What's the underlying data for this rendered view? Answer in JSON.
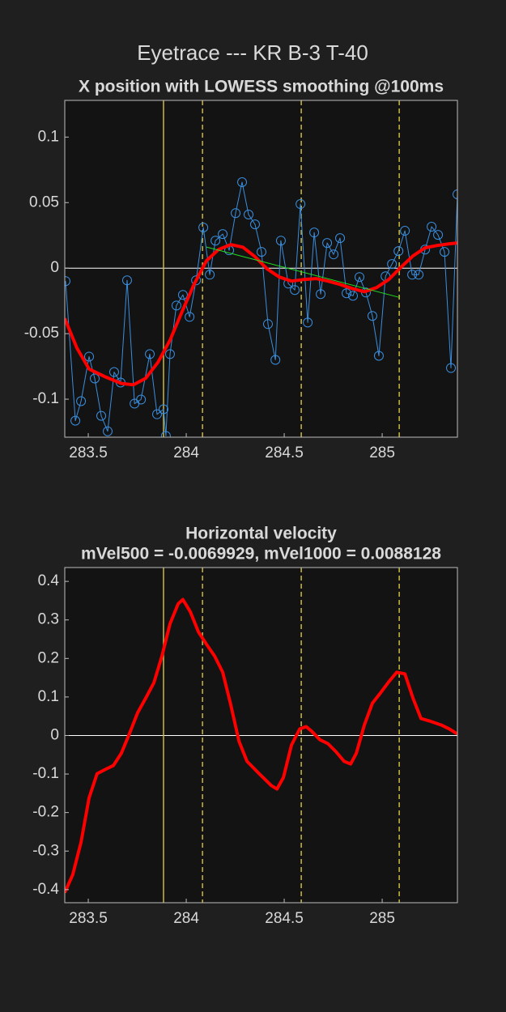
{
  "title": "Eyetrace --- KR B-3 T-40",
  "chart_data": [
    {
      "type": "line",
      "title": "X position with LOWESS smoothing @100ms",
      "xlim": [
        283.38,
        285.384
      ],
      "ylim": [
        -0.129,
        0.128
      ],
      "xticks": [
        283.5,
        284,
        284.5,
        285
      ],
      "yticks": [
        -0.1,
        -0.05,
        0,
        0.05,
        0.1
      ],
      "hlines": [
        0
      ],
      "vlines": [
        {
          "x": 283.884,
          "style": "solid"
        },
        {
          "x": 284.083,
          "style": "dashed"
        },
        {
          "x": 284.587,
          "style": "dashed"
        },
        {
          "x": 285.087,
          "style": "dashed"
        }
      ],
      "vline_color": "#cbb93f",
      "series": [
        {
          "color": "#3a8ede",
          "marker": "circle",
          "width": 1,
          "x": [
            283.384,
            283.434,
            283.463,
            283.504,
            283.533,
            283.566,
            283.599,
            283.632,
            283.665,
            283.698,
            283.736,
            283.769,
            283.814,
            283.851,
            283.884,
            283.896,
            283.917,
            283.95,
            283.983,
            284.017,
            284.05,
            284.087,
            284.12,
            284.149,
            284.186,
            284.219,
            284.252,
            284.285,
            284.318,
            284.351,
            284.384,
            284.417,
            284.455,
            284.483,
            284.521,
            284.554,
            284.583,
            284.62,
            284.653,
            284.686,
            284.719,
            284.752,
            284.785,
            284.818,
            284.851,
            284.884,
            284.917,
            284.95,
            284.983,
            285.017,
            285.05,
            285.083,
            285.116,
            285.153,
            285.186,
            285.219,
            285.252,
            285.285,
            285.318,
            285.351,
            285.384
          ],
          "values": [
            -0.0099,
            -0.1164,
            -0.1015,
            -0.0675,
            -0.0842,
            -0.1127,
            -0.1245,
            -0.0793,
            -0.0873,
            -0.0093,
            -0.1034,
            -0.1003,
            -0.0656,
            -0.1115,
            -0.1077,
            -0.128,
            -0.0656,
            -0.0285,
            -0.0204,
            -0.0372,
            -0.0093,
            0.031,
            -0.005,
            0.021,
            0.026,
            0.0136,
            0.042,
            0.0656,
            0.0409,
            0.0334,
            0.0124,
            -0.0427,
            -0.07,
            0.021,
            -0.0118,
            -0.0167,
            0.0489,
            -0.0415,
            0.0272,
            -0.0198,
            0.0192,
            0.0105,
            0.0229,
            -0.0192,
            -0.0211,
            -0.0068,
            -0.0186,
            -0.0365,
            -0.0669,
            -0.0062,
            0.0031,
            0.013,
            0.0285,
            -0.005,
            -0.005,
            0.0142,
            0.0316,
            0.0254,
            0.0124,
            -0.0762,
            0.0563
          ]
        },
        {
          "color": "#ff0000",
          "width": 4,
          "x": [
            283.38,
            283.442,
            283.504,
            283.587,
            283.669,
            283.731,
            283.793,
            283.855,
            283.917,
            283.979,
            284.041,
            284.103,
            284.165,
            284.227,
            284.289,
            284.351,
            284.413,
            284.475,
            284.537,
            284.599,
            284.661,
            284.723,
            284.785,
            284.847,
            284.909,
            284.971,
            285.033,
            285.095,
            285.157,
            285.219,
            285.281,
            285.343,
            285.384
          ],
          "values": [
            -0.0384,
            -0.061,
            -0.077,
            -0.083,
            -0.088,
            -0.089,
            -0.084,
            -0.072,
            -0.055,
            -0.033,
            -0.012,
            0.0056,
            0.0142,
            0.018,
            0.016,
            0.0087,
            -0.0006,
            -0.0068,
            -0.0099,
            -0.0087,
            -0.008,
            -0.0099,
            -0.0124,
            -0.0155,
            -0.018,
            -0.0149,
            -0.0087,
            0.0006,
            0.0093,
            0.0155,
            0.0173,
            0.0186,
            0.0192
          ]
        },
        {
          "color": "#22dd22",
          "width": 1,
          "x": [
            284.103,
            285.087
          ],
          "values": [
            0.0161,
            -0.0223
          ]
        }
      ]
    },
    {
      "type": "line",
      "title": "Horizontal velocity",
      "subtitle": "mVel500 = -0.0069929, mVel1000 = 0.0088128",
      "xlim": [
        283.38,
        285.384
      ],
      "ylim": [
        -0.434,
        0.436
      ],
      "xticks": [
        283.5,
        284,
        284.5,
        285
      ],
      "yticks": [
        -0.4,
        -0.3,
        -0.2,
        -0.1,
        0,
        0.1,
        0.2,
        0.3,
        0.4
      ],
      "hlines": [
        0
      ],
      "vlines": [
        {
          "x": 283.884,
          "style": "solid"
        },
        {
          "x": 284.083,
          "style": "dashed"
        },
        {
          "x": 284.587,
          "style": "dashed"
        },
        {
          "x": 285.087,
          "style": "dashed"
        }
      ],
      "vline_color": "#cbb93f",
      "series": [
        {
          "color": "#ff0000",
          "width": 4,
          "x": [
            283.38,
            283.421,
            283.463,
            283.504,
            283.545,
            283.587,
            283.628,
            283.669,
            283.711,
            283.752,
            283.793,
            283.835,
            283.876,
            283.917,
            283.959,
            283.983,
            284.021,
            284.062,
            284.103,
            284.145,
            284.186,
            284.227,
            284.269,
            284.31,
            284.372,
            284.434,
            284.463,
            284.496,
            284.537,
            284.579,
            284.612,
            284.64,
            284.682,
            284.723,
            284.764,
            284.806,
            284.839,
            284.868,
            284.909,
            284.95,
            284.992,
            285.033,
            285.074,
            285.116,
            285.157,
            285.198,
            285.24,
            285.302,
            285.343,
            285.384
          ],
          "values": [
            -0.408,
            -0.361,
            -0.277,
            -0.162,
            -0.099,
            -0.088,
            -0.078,
            -0.046,
            0.006,
            0.059,
            0.097,
            0.137,
            0.206,
            0.29,
            0.342,
            0.353,
            0.321,
            0.269,
            0.237,
            0.206,
            0.164,
            0.08,
            -0.015,
            -0.067,
            -0.099,
            -0.13,
            -0.139,
            -0.109,
            -0.025,
            0.017,
            0.023,
            0.011,
            -0.011,
            -0.021,
            -0.042,
            -0.067,
            -0.074,
            -0.046,
            0.027,
            0.084,
            0.111,
            0.139,
            0.164,
            0.16,
            0.097,
            0.044,
            0.038,
            0.027,
            0.017,
            0.004
          ]
        }
      ]
    }
  ]
}
